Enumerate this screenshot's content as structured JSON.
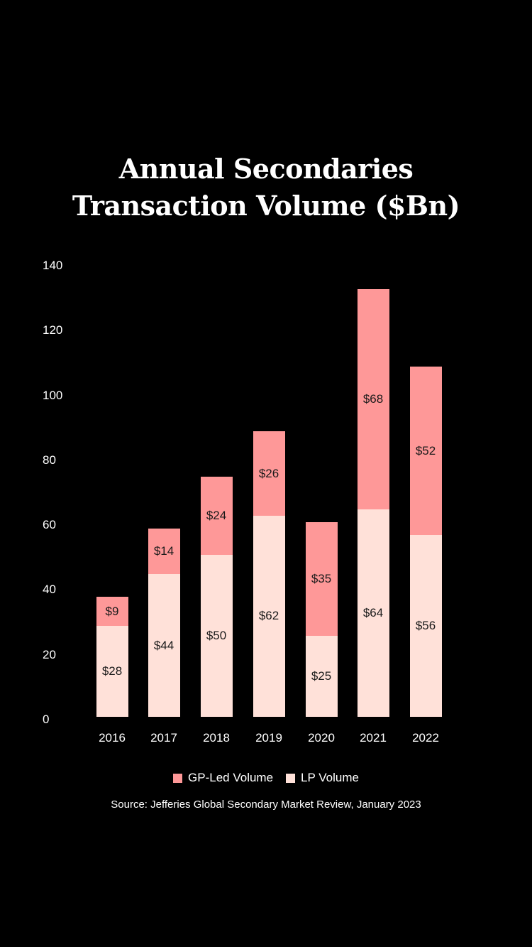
{
  "title_line1": "Annual Secondaries",
  "title_line2": "Transaction Volume ($Bn)",
  "colors": {
    "gp": "#fe9898",
    "lp": "#ffe1d9",
    "background": "#000000"
  },
  "legend": [
    {
      "label": "GP-Led Volume",
      "color": "#fe9898"
    },
    {
      "label": "LP Volume",
      "color": "#ffe1d9"
    }
  ],
  "source": "Source: Jefferies Global Secondary Market Review, January 2023",
  "chart_data": {
    "type": "bar",
    "stacked": true,
    "title": "Annual Secondaries Transaction Volume ($Bn)",
    "xlabel": "",
    "ylabel": "",
    "categories": [
      "2016",
      "2017",
      "2018",
      "2019",
      "2020",
      "2021",
      "2022"
    ],
    "series": [
      {
        "name": "LP Volume",
        "values": [
          28,
          44,
          50,
          62,
          25,
          64,
          56
        ],
        "labels": [
          "$28",
          "$44",
          "$50",
          "$62",
          "$25",
          "$64",
          "$56"
        ]
      },
      {
        "name": "GP-Led Volume",
        "values": [
          9,
          14,
          24,
          26,
          35,
          68,
          52
        ],
        "labels": [
          "$9",
          "$14",
          "$24",
          "$26",
          "$35",
          "$68",
          "$52"
        ]
      }
    ],
    "yticks": [
      "0",
      "20",
      "40",
      "60",
      "80",
      "100",
      "120",
      "140"
    ],
    "ylim": [
      0,
      140
    ],
    "grid": false,
    "legend_position": "bottom"
  }
}
